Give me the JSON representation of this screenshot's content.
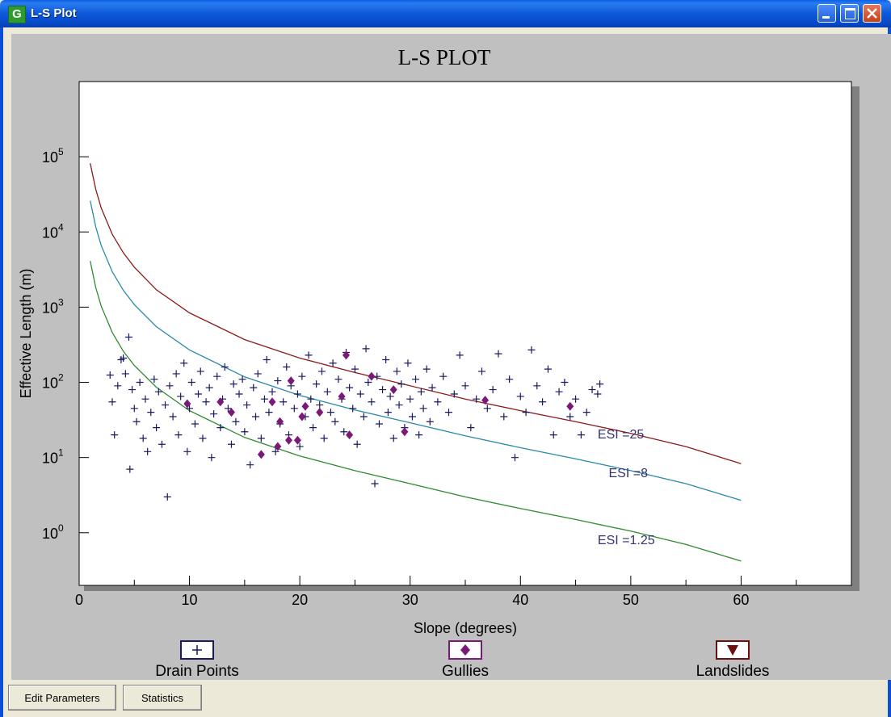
{
  "window": {
    "title": "L-S Plot",
    "app_icon_letter": "G"
  },
  "buttons": {
    "edit_parameters": "Edit Parameters",
    "statistics": "Statistics"
  },
  "legend": [
    {
      "label": "Drain Points",
      "marker": "plus",
      "color": "#1a1a5e"
    },
    {
      "label": "Gullies",
      "marker": "diamond",
      "color": "#7a1a78"
    },
    {
      "label": "Landslides",
      "marker": "triangle-down",
      "color": "#6b0f0f"
    }
  ],
  "chart_data": {
    "type": "scatter",
    "title": "L-S PLOT",
    "xlabel": "Slope (degrees)",
    "ylabel": "Effective Length (m)",
    "xlim": [
      0,
      70
    ],
    "x_ticks": [
      0,
      10,
      20,
      30,
      40,
      50,
      60
    ],
    "y_log_scale": true,
    "ylim_log10": [
      -0.7,
      6.0
    ],
    "y_ticks": [
      {
        "value": 1,
        "base": "10",
        "exp": "0"
      },
      {
        "value": 10,
        "base": "10",
        "exp": "1"
      },
      {
        "value": 100,
        "base": "10",
        "exp": "2"
      },
      {
        "value": 1000,
        "base": "10",
        "exp": "3"
      },
      {
        "value": 10000,
        "base": "10",
        "exp": "4"
      },
      {
        "value": 100000,
        "base": "10",
        "exp": "5"
      }
    ],
    "grid": false,
    "legend_position": "bottom",
    "curves": [
      {
        "label": "ESI =25",
        "esi": 25,
        "color": "#8b1a1a",
        "x": [
          1,
          1.5,
          2,
          3,
          4,
          5,
          7,
          10,
          15,
          20,
          25,
          30,
          35,
          40,
          45,
          50,
          55,
          60
        ],
        "y": [
          82000,
          37000,
          20800,
          9300,
          5300,
          3400,
          1700,
          840,
          370,
          210,
          135,
          90,
          60,
          42,
          30,
          21,
          14,
          8.3
        ],
        "label_at": [
          47,
          18
        ]
      },
      {
        "label": "ESI =8",
        "esi": 8,
        "color": "#2a8aa8",
        "x": [
          1,
          1.5,
          2,
          3,
          4,
          5,
          7,
          10,
          15,
          20,
          25,
          30,
          35,
          40,
          45,
          50,
          55,
          60
        ],
        "y": [
          26000,
          11700,
          6600,
          2950,
          1680,
          1080,
          550,
          270,
          118,
          67,
          43,
          29,
          19.5,
          13.5,
          9.6,
          6.7,
          4.5,
          2.7
        ],
        "label_at": [
          48,
          5.5
        ]
      },
      {
        "label": "ESI =1.25",
        "esi": 1.25,
        "color": "#2e8b2e",
        "x": [
          1,
          1.5,
          2,
          3,
          4,
          5,
          7,
          10,
          15,
          20,
          25,
          30,
          35,
          40,
          45,
          50,
          55,
          60
        ],
        "y": [
          4100,
          1830,
          1030,
          460,
          260,
          168,
          86,
          42,
          18.5,
          10.5,
          6.7,
          4.5,
          3.0,
          2.1,
          1.5,
          1.05,
          0.7,
          0.42
        ],
        "label_at": [
          47,
          0.7
        ]
      }
    ],
    "series": [
      {
        "name": "Drain Points",
        "marker": "plus",
        "color": "#1a1a5e",
        "points": [
          [
            2.8,
            125
          ],
          [
            3.0,
            55
          ],
          [
            3.2,
            20
          ],
          [
            3.5,
            90
          ],
          [
            3.8,
            200
          ],
          [
            4.0,
            210
          ],
          [
            4.2,
            130
          ],
          [
            4.5,
            400
          ],
          [
            4.6,
            7
          ],
          [
            4.8,
            80
          ],
          [
            5.0,
            45
          ],
          [
            5.2,
            30
          ],
          [
            5.5,
            100
          ],
          [
            5.8,
            18
          ],
          [
            6.0,
            60
          ],
          [
            6.2,
            12
          ],
          [
            6.5,
            40
          ],
          [
            6.8,
            110
          ],
          [
            7.0,
            25
          ],
          [
            7.2,
            75
          ],
          [
            7.5,
            15
          ],
          [
            7.8,
            50
          ],
          [
            8.0,
            3
          ],
          [
            8.2,
            90
          ],
          [
            8.5,
            35
          ],
          [
            8.8,
            130
          ],
          [
            9.0,
            20
          ],
          [
            9.2,
            65
          ],
          [
            9.5,
            180
          ],
          [
            9.8,
            12
          ],
          [
            10.0,
            45
          ],
          [
            10.2,
            100
          ],
          [
            10.5,
            28
          ],
          [
            10.8,
            70
          ],
          [
            11.0,
            140
          ],
          [
            11.2,
            18
          ],
          [
            11.5,
            55
          ],
          [
            11.8,
            85
          ],
          [
            12.0,
            10
          ],
          [
            12.2,
            38
          ],
          [
            12.5,
            120
          ],
          [
            12.8,
            25
          ],
          [
            13.0,
            60
          ],
          [
            13.2,
            160
          ],
          [
            13.5,
            45
          ],
          [
            13.8,
            15
          ],
          [
            14.0,
            95
          ],
          [
            14.2,
            30
          ],
          [
            14.5,
            70
          ],
          [
            14.8,
            110
          ],
          [
            15.0,
            22
          ],
          [
            15.2,
            50
          ],
          [
            15.5,
            8
          ],
          [
            15.8,
            85
          ],
          [
            16.0,
            35
          ],
          [
            16.2,
            130
          ],
          [
            16.5,
            18
          ],
          [
            16.8,
            60
          ],
          [
            17.0,
            200
          ],
          [
            17.2,
            40
          ],
          [
            17.5,
            75
          ],
          [
            17.8,
            12
          ],
          [
            18.0,
            105
          ],
          [
            18.2,
            28
          ],
          [
            18.5,
            55
          ],
          [
            18.8,
            160
          ],
          [
            19.0,
            20
          ],
          [
            19.2,
            90
          ],
          [
            19.5,
            45
          ],
          [
            19.8,
            70
          ],
          [
            20.0,
            14
          ],
          [
            20.2,
            120
          ],
          [
            20.5,
            35
          ],
          [
            20.8,
            230
          ],
          [
            21.0,
            60
          ],
          [
            21.2,
            25
          ],
          [
            21.5,
            95
          ],
          [
            21.8,
            50
          ],
          [
            22.0,
            140
          ],
          [
            22.2,
            18
          ],
          [
            22.5,
            75
          ],
          [
            22.8,
            40
          ],
          [
            23.0,
            180
          ],
          [
            23.2,
            30
          ],
          [
            23.5,
            110
          ],
          [
            23.8,
            60
          ],
          [
            24.0,
            22
          ],
          [
            24.2,
            250
          ],
          [
            24.5,
            85
          ],
          [
            24.8,
            45
          ],
          [
            25.0,
            150
          ],
          [
            25.2,
            15
          ],
          [
            25.5,
            70
          ],
          [
            25.8,
            35
          ],
          [
            26.0,
            280
          ],
          [
            26.2,
            100
          ],
          [
            26.5,
            55
          ],
          [
            26.8,
            4.5
          ],
          [
            27.0,
            120
          ],
          [
            27.2,
            28
          ],
          [
            27.5,
            80
          ],
          [
            27.8,
            200
          ],
          [
            28.0,
            40
          ],
          [
            28.2,
            65
          ],
          [
            28.5,
            18
          ],
          [
            28.8,
            140
          ],
          [
            29.0,
            50
          ],
          [
            29.2,
            95
          ],
          [
            29.5,
            25
          ],
          [
            29.8,
            180
          ],
          [
            30.0,
            60
          ],
          [
            30.2,
            35
          ],
          [
            30.5,
            110
          ],
          [
            30.8,
            20
          ],
          [
            31.0,
            75
          ],
          [
            31.2,
            45
          ],
          [
            31.5,
            150
          ],
          [
            31.8,
            30
          ],
          [
            32.0,
            85
          ],
          [
            32.5,
            55
          ],
          [
            33.0,
            120
          ],
          [
            33.5,
            40
          ],
          [
            34.0,
            70
          ],
          [
            34.5,
            230
          ],
          [
            35.0,
            90
          ],
          [
            35.5,
            25
          ],
          [
            36.0,
            60
          ],
          [
            36.5,
            140
          ],
          [
            37.0,
            45
          ],
          [
            37.5,
            80
          ],
          [
            38.0,
            240
          ],
          [
            38.5,
            35
          ],
          [
            39.0,
            110
          ],
          [
            39.5,
            10
          ],
          [
            40.0,
            65
          ],
          [
            40.5,
            40
          ],
          [
            41.0,
            270
          ],
          [
            41.5,
            90
          ],
          [
            42.0,
            55
          ],
          [
            42.5,
            150
          ],
          [
            43.0,
            20
          ],
          [
            43.5,
            75
          ],
          [
            44.0,
            100
          ],
          [
            44.5,
            35
          ],
          [
            45.0,
            60
          ],
          [
            45.5,
            20
          ],
          [
            46.0,
            40
          ],
          [
            46.5,
            80
          ],
          [
            47.0,
            70
          ],
          [
            47.2,
            95
          ]
        ]
      },
      {
        "name": "Gullies",
        "marker": "diamond",
        "color": "#7a1a78",
        "points": [
          [
            9.8,
            52
          ],
          [
            12.8,
            55
          ],
          [
            13.8,
            40
          ],
          [
            16.5,
            11
          ],
          [
            17.5,
            55
          ],
          [
            18.0,
            14
          ],
          [
            18.2,
            30
          ],
          [
            19.0,
            17
          ],
          [
            19.2,
            105
          ],
          [
            19.8,
            17
          ],
          [
            20.2,
            35
          ],
          [
            20.5,
            48
          ],
          [
            21.8,
            40
          ],
          [
            23.8,
            65
          ],
          [
            24.2,
            230
          ],
          [
            24.5,
            20
          ],
          [
            26.5,
            120
          ],
          [
            28.5,
            80
          ],
          [
            29.5,
            22
          ],
          [
            36.8,
            58
          ],
          [
            44.5,
            48
          ]
        ]
      },
      {
        "name": "Landslides",
        "marker": "triangle-down",
        "color": "#6b0f0f",
        "points": []
      }
    ]
  }
}
